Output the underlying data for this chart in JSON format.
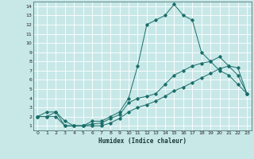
{
  "xlabel": "Humidex (Indice chaleur)",
  "bg_color": "#c8e8e8",
  "grid_color": "#b0d8d8",
  "line_color": "#1a6e6a",
  "xticks": [
    0,
    1,
    2,
    3,
    4,
    5,
    6,
    7,
    8,
    9,
    10,
    11,
    12,
    13,
    14,
    15,
    16,
    17,
    18,
    19,
    20,
    21,
    22,
    23
  ],
  "yticks": [
    1,
    2,
    3,
    4,
    5,
    6,
    7,
    8,
    9,
    10,
    11,
    12,
    13,
    14
  ],
  "s1_x": [
    0,
    1,
    2,
    3,
    4,
    5,
    6,
    7,
    8,
    9,
    10,
    11,
    12,
    13,
    14,
    15,
    16,
    17,
    18,
    19,
    20,
    21,
    22,
    23
  ],
  "s1_y": [
    2.0,
    2.5,
    2.5,
    1.0,
    1.0,
    1.0,
    1.5,
    1.5,
    2.0,
    2.5,
    4.0,
    7.5,
    12.0,
    12.5,
    13.0,
    14.2,
    13.0,
    12.5,
    9.0,
    8.0,
    7.0,
    6.5,
    5.5,
    4.5
  ],
  "s2_x": [
    0,
    1,
    2,
    3,
    4,
    5,
    6,
    7,
    8,
    9,
    10,
    11,
    12,
    13,
    14,
    15,
    16,
    17,
    18,
    19,
    20,
    21,
    22,
    23
  ],
  "s2_y": [
    2.0,
    2.0,
    2.5,
    1.5,
    1.0,
    1.0,
    1.2,
    1.3,
    1.8,
    2.2,
    3.5,
    4.0,
    4.2,
    4.5,
    5.5,
    6.5,
    7.0,
    7.5,
    7.8,
    8.0,
    8.5,
    7.5,
    6.5,
    4.5
  ],
  "s3_x": [
    0,
    1,
    2,
    3,
    4,
    5,
    6,
    7,
    8,
    9,
    10,
    11,
    12,
    13,
    14,
    15,
    16,
    17,
    18,
    19,
    20,
    21,
    22,
    23
  ],
  "s3_y": [
    2.0,
    2.0,
    2.0,
    1.0,
    1.0,
    1.0,
    1.0,
    1.0,
    1.3,
    1.8,
    2.5,
    3.0,
    3.3,
    3.7,
    4.2,
    4.8,
    5.2,
    5.7,
    6.2,
    6.7,
    7.2,
    7.5,
    7.3,
    4.5
  ],
  "s1_markers_x": [
    0,
    1,
    2,
    3,
    4,
    5,
    6,
    7,
    8,
    9,
    10,
    11,
    12,
    13,
    14,
    15,
    16,
    17,
    18,
    19,
    20,
    21,
    22,
    23
  ],
  "s1_markers_y": [
    2.0,
    2.5,
    2.5,
    1.0,
    1.0,
    1.0,
    1.5,
    1.5,
    2.0,
    2.5,
    4.0,
    7.5,
    12.0,
    12.5,
    13.0,
    14.2,
    13.0,
    12.5,
    9.0,
    8.0,
    7.0,
    6.5,
    5.5,
    4.5
  ]
}
